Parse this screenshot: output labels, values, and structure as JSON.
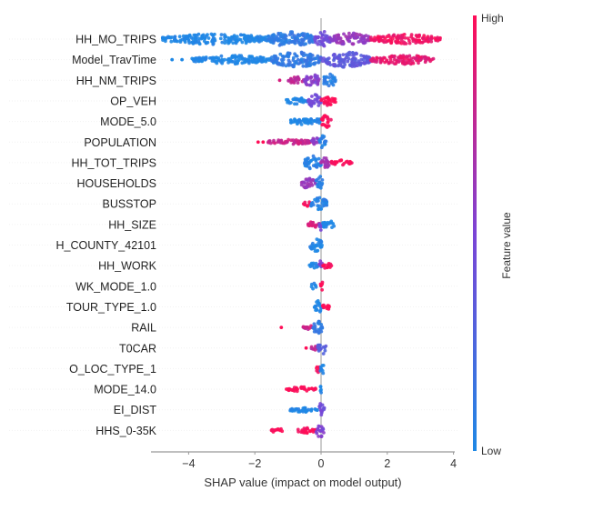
{
  "chart_data": {
    "type": "scatter",
    "subtype": "shap-beeswarm",
    "title": "",
    "xlabel": "SHAP value (impact on model output)",
    "ylabel": "",
    "xlim": [
      -5.1,
      4.1
    ],
    "x_ticks": [
      -4,
      -2,
      0,
      2,
      4
    ],
    "x_tick_labels": [
      "−4",
      "−2",
      "0",
      "2",
      "4"
    ],
    "grid": false,
    "colorbar": {
      "label": "Feature value",
      "high_label": "High",
      "low_label": "Low",
      "low_color": "#1e88e5",
      "mid_color": "#7b44d6",
      "high_color": "#ff0d57",
      "placement": "right"
    },
    "features": [
      {
        "name": "HH_MO_TRIPS",
        "segments": [
          {
            "from": -4.8,
            "to": -1.6,
            "value": 0.0,
            "width": 0.7
          },
          {
            "from": -1.6,
            "to": -0.2,
            "value": 0.1,
            "width": 1.0
          },
          {
            "from": -0.2,
            "to": 0.3,
            "value": 0.45,
            "width": 1.0
          },
          {
            "from": 0.3,
            "to": 1.5,
            "value": 0.6,
            "width": 0.8
          },
          {
            "from": 1.5,
            "to": 3.6,
            "value": 0.95,
            "width": 0.6
          }
        ]
      },
      {
        "name": "Model_TravTime",
        "outliers": [
          {
            "x": -4.5,
            "value": 0.0
          },
          {
            "x": -4.2,
            "value": 0.0
          }
        ],
        "segments": [
          {
            "from": -3.9,
            "to": -1.5,
            "value": 0.0,
            "width": 0.55
          },
          {
            "from": -1.5,
            "to": 0.0,
            "value": 0.1,
            "width": 1.0
          },
          {
            "from": 0.0,
            "to": 1.5,
            "value": 0.35,
            "width": 1.0
          },
          {
            "from": 1.5,
            "to": 3.4,
            "value": 0.9,
            "width": 0.6
          }
        ]
      },
      {
        "name": "HH_NM_TRIPS",
        "outliers": [
          {
            "x": -1.25,
            "value": 0.85
          }
        ],
        "segments": [
          {
            "from": -1.0,
            "to": -0.5,
            "value": 0.75,
            "width": 0.45
          },
          {
            "from": -0.5,
            "to": -0.05,
            "value": 0.55,
            "width": 0.95
          },
          {
            "from": 0.05,
            "to": 0.45,
            "value": 0.05,
            "width": 0.85
          }
        ]
      },
      {
        "name": "OP_VEH",
        "segments": [
          {
            "from": -1.1,
            "to": -0.4,
            "value": 0.0,
            "width": 0.4
          },
          {
            "from": -0.4,
            "to": 0.0,
            "value": 0.45,
            "width": 0.85
          },
          {
            "from": 0.0,
            "to": 0.45,
            "value": 1.0,
            "width": 0.6
          }
        ]
      },
      {
        "name": "MODE_5.0",
        "segments": [
          {
            "from": -0.95,
            "to": -0.15,
            "value": 0.0,
            "width": 0.45
          },
          {
            "from": -0.15,
            "to": 0.0,
            "value": 0.05,
            "width": 0.6
          },
          {
            "from": 0.0,
            "to": 0.3,
            "value": 1.0,
            "width": 0.8
          }
        ]
      },
      {
        "name": "POPULATION",
        "outliers": [
          {
            "x": -1.9,
            "value": 1.0
          },
          {
            "x": -1.75,
            "value": 1.0
          }
        ],
        "segments": [
          {
            "from": -1.6,
            "to": -0.3,
            "value": 0.8,
            "width": 0.35
          },
          {
            "from": -0.3,
            "to": -0.05,
            "value": 0.55,
            "width": 0.6
          },
          {
            "from": -0.05,
            "to": 0.15,
            "value": 0.05,
            "width": 0.95
          }
        ]
      },
      {
        "name": "HH_TOT_TRIPS",
        "segments": [
          {
            "from": -0.5,
            "to": 0.0,
            "value": 0.05,
            "width": 0.95
          },
          {
            "from": 0.0,
            "to": 0.3,
            "value": 0.65,
            "width": 0.7
          },
          {
            "from": 0.3,
            "to": 0.95,
            "value": 1.0,
            "width": 0.35
          }
        ]
      },
      {
        "name": "HOUSEHOLDS",
        "segments": [
          {
            "from": -0.6,
            "to": -0.15,
            "value": 0.6,
            "width": 0.7
          },
          {
            "from": -0.15,
            "to": 0.05,
            "value": 0.05,
            "width": 0.95
          }
        ]
      },
      {
        "name": "BUSSTOP",
        "segments": [
          {
            "from": -0.55,
            "to": -0.3,
            "value": 1.0,
            "width": 0.35
          },
          {
            "from": -0.3,
            "to": 0.2,
            "value": 0.05,
            "width": 0.85
          }
        ]
      },
      {
        "name": "HH_SIZE",
        "segments": [
          {
            "from": -0.4,
            "to": -0.05,
            "value": 0.85,
            "width": 0.45
          },
          {
            "from": -0.05,
            "to": 0.05,
            "value": 0.45,
            "width": 0.8
          },
          {
            "from": 0.05,
            "to": 0.4,
            "value": 0.0,
            "width": 0.6
          }
        ]
      },
      {
        "name": "H_COUNTY_42101",
        "segments": [
          {
            "from": -0.35,
            "to": 0.05,
            "value": 0.0,
            "width": 0.85
          }
        ]
      },
      {
        "name": "HH_WORK",
        "segments": [
          {
            "from": -0.35,
            "to": -0.05,
            "value": 0.0,
            "width": 0.4
          },
          {
            "from": -0.05,
            "to": 0.05,
            "value": 0.5,
            "width": 0.9
          },
          {
            "from": 0.05,
            "to": 0.35,
            "value": 1.0,
            "width": 0.45
          }
        ]
      },
      {
        "name": "WK_MODE_1.0",
        "segments": [
          {
            "from": -0.3,
            "to": -0.15,
            "value": 0.0,
            "width": 0.4
          },
          {
            "from": -0.02,
            "to": 0.05,
            "value": 1.0,
            "width": 0.95
          }
        ]
      },
      {
        "name": "TOUR_TYPE_1.0",
        "segments": [
          {
            "from": -0.2,
            "to": 0.05,
            "value": 0.0,
            "width": 0.85
          },
          {
            "from": 0.05,
            "to": 0.25,
            "value": 1.0,
            "width": 0.6
          }
        ]
      },
      {
        "name": "RAIL",
        "outliers": [
          {
            "x": -1.2,
            "value": 1.0
          }
        ],
        "segments": [
          {
            "from": -0.55,
            "to": -0.25,
            "value": 0.8,
            "width": 0.3
          },
          {
            "from": -0.25,
            "to": 0.05,
            "value": 0.1,
            "width": 0.95
          }
        ]
      },
      {
        "name": "T0CAR",
        "outliers": [
          {
            "x": -0.45,
            "value": 1.0
          }
        ],
        "segments": [
          {
            "from": -0.3,
            "to": -0.1,
            "value": 0.75,
            "width": 0.35
          },
          {
            "from": -0.1,
            "to": 0.15,
            "value": 0.3,
            "width": 0.85
          }
        ]
      },
      {
        "name": "O_LOC_TYPE_1",
        "segments": [
          {
            "from": -0.2,
            "to": -0.02,
            "value": 1.0,
            "width": 0.5
          },
          {
            "from": -0.02,
            "to": 0.08,
            "value": 0.0,
            "width": 0.95
          }
        ]
      },
      {
        "name": "MODE_14.0",
        "segments": [
          {
            "from": -1.05,
            "to": -0.15,
            "value": 1.0,
            "width": 0.3
          },
          {
            "from": -0.02,
            "to": 0.05,
            "value": 0.0,
            "width": 0.85
          }
        ]
      },
      {
        "name": "EI_DIST",
        "segments": [
          {
            "from": -0.95,
            "to": -0.1,
            "value": 0.0,
            "width": 0.3
          },
          {
            "from": -0.1,
            "to": 0.1,
            "value": 0.45,
            "width": 0.85
          }
        ]
      },
      {
        "name": "HHS_0-35K",
        "segments": [
          {
            "from": -1.5,
            "to": -1.15,
            "value": 1.0,
            "width": 0.3
          },
          {
            "from": -0.75,
            "to": -0.15,
            "value": 1.0,
            "width": 0.35
          },
          {
            "from": -0.15,
            "to": 0.1,
            "value": 0.5,
            "width": 0.95
          }
        ]
      }
    ]
  }
}
